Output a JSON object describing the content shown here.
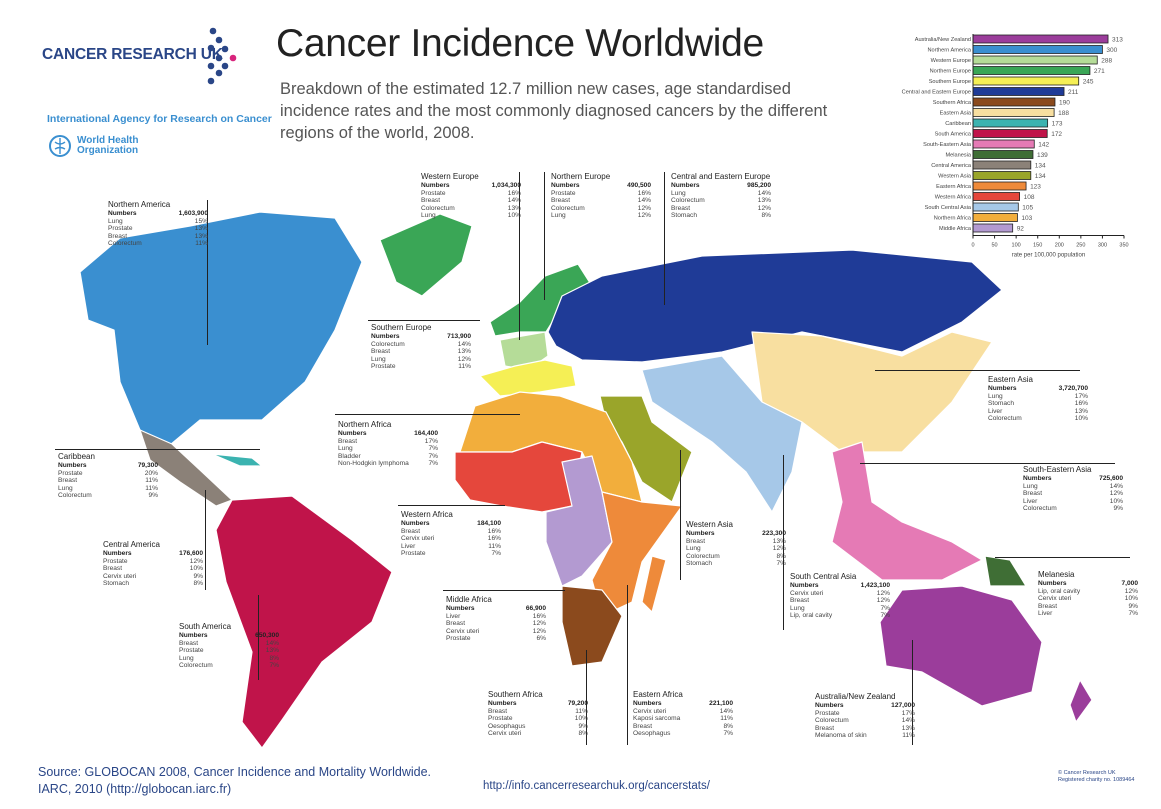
{
  "header": {
    "logo_text": "CANCER RESEARCH UK",
    "iarc": "International Agency for Research on Cancer",
    "who_line1": "World Health",
    "who_line2": "Organization",
    "title": "Cancer Incidence Worldwide",
    "subtitle": "Breakdown of the estimated 12.7 million new cases, age standardised incidence rates and the most commonly diagnosed cancers by the different regions of the world, 2008."
  },
  "numbers_label": "Numbers",
  "regions": [
    {
      "name": "Northern America",
      "numbers": "1,603,900",
      "color": "#3a8fd0",
      "cancers": [
        [
          "Lung",
          "15%"
        ],
        [
          "Prostate",
          "13%"
        ],
        [
          "Breast",
          "13%"
        ],
        [
          "Colorectum",
          "11%"
        ]
      ]
    },
    {
      "name": "Western Europe",
      "numbers": "1,034,300",
      "color": "#b5dc98",
      "cancers": [
        [
          "Prostate",
          "16%"
        ],
        [
          "Breast",
          "14%"
        ],
        [
          "Colorectum",
          "13%"
        ],
        [
          "Lung",
          "10%"
        ]
      ]
    },
    {
      "name": "Northern Europe",
      "numbers": "490,500",
      "color": "#3aa656",
      "cancers": [
        [
          "Prostate",
          "16%"
        ],
        [
          "Breast",
          "14%"
        ],
        [
          "Colorectum",
          "12%"
        ],
        [
          "Lung",
          "12%"
        ]
      ]
    },
    {
      "name": "Central and Eastern Europe",
      "numbers": "985,200",
      "color": "#1f3b97",
      "cancers": [
        [
          "Lung",
          "14%"
        ],
        [
          "Colorectum",
          "13%"
        ],
        [
          "Breast",
          "12%"
        ],
        [
          "Stomach",
          "8%"
        ]
      ]
    },
    {
      "name": "Southern Europe",
      "numbers": "713,900",
      "color": "#f5ef55",
      "cancers": [
        [
          "Colorectum",
          "14%"
        ],
        [
          "Breast",
          "13%"
        ],
        [
          "Lung",
          "12%"
        ],
        [
          "Prostate",
          "11%"
        ]
      ]
    },
    {
      "name": "Eastern Asia",
      "numbers": "3,720,700",
      "color": "#f8dfa0",
      "cancers": [
        [
          "Lung",
          "17%"
        ],
        [
          "Stomach",
          "16%"
        ],
        [
          "Liver",
          "13%"
        ],
        [
          "Colorectum",
          "10%"
        ]
      ]
    },
    {
      "name": "Northern Africa",
      "numbers": "164,400",
      "color": "#f2ae3c",
      "cancers": [
        [
          "Breast",
          "17%"
        ],
        [
          "Lung",
          "7%"
        ],
        [
          "Bladder",
          "7%"
        ],
        [
          "Non-Hodgkin lymphoma",
          "7%"
        ]
      ]
    },
    {
      "name": "Caribbean",
      "numbers": "79,300",
      "color": "#3bb3b0",
      "cancers": [
        [
          "Prostate",
          "20%"
        ],
        [
          "Breast",
          "11%"
        ],
        [
          "Lung",
          "11%"
        ],
        [
          "Colorectum",
          "9%"
        ]
      ]
    },
    {
      "name": "South-Eastern Asia",
      "numbers": "725,600",
      "color": "#e57ab5",
      "cancers": [
        [
          "Lung",
          "14%"
        ],
        [
          "Breast",
          "12%"
        ],
        [
          "Liver",
          "10%"
        ],
        [
          "Colorectum",
          "9%"
        ]
      ]
    },
    {
      "name": "Western Africa",
      "numbers": "184,100",
      "color": "#e5473c",
      "cancers": [
        [
          "Breast",
          "16%"
        ],
        [
          "Cervix uteri",
          "16%"
        ],
        [
          "Liver",
          "11%"
        ],
        [
          "Prostate",
          "7%"
        ]
      ]
    },
    {
      "name": "Western Asia",
      "numbers": "223,300",
      "color": "#9aa52a",
      "cancers": [
        [
          "Breast",
          "13%"
        ],
        [
          "Lung",
          "12%"
        ],
        [
          "Colorectum",
          "8%"
        ],
        [
          "Stomach",
          "7%"
        ]
      ]
    },
    {
      "name": "Central America",
      "numbers": "176,600",
      "color": "#8b8178",
      "cancers": [
        [
          "Prostate",
          "12%"
        ],
        [
          "Breast",
          "10%"
        ],
        [
          "Cervix uteri",
          "9%"
        ],
        [
          "Stomach",
          "8%"
        ]
      ]
    },
    {
      "name": "Melanesia",
      "numbers": "7,000",
      "color": "#3f6e35",
      "cancers": [
        [
          "Lip, oral cavity",
          "12%"
        ],
        [
          "Cervix uteri",
          "10%"
        ],
        [
          "Breast",
          "9%"
        ],
        [
          "Liver",
          "7%"
        ]
      ]
    },
    {
      "name": "South Central Asia",
      "numbers": "1,423,100",
      "color": "#a6c8e8",
      "cancers": [
        [
          "Cervix uteri",
          "12%"
        ],
        [
          "Breast",
          "12%"
        ],
        [
          "Lung",
          "7%"
        ],
        [
          "Lip, oral cavity",
          "7%"
        ]
      ]
    },
    {
      "name": "Middle Africa",
      "numbers": "66,900",
      "color": "#b39ad1",
      "cancers": [
        [
          "Liver",
          "16%"
        ],
        [
          "Breast",
          "12%"
        ],
        [
          "Cervix uteri",
          "12%"
        ],
        [
          "Prostate",
          "6%"
        ]
      ]
    },
    {
      "name": "South America",
      "numbers": "650,300",
      "color": "#c0144a",
      "cancers": [
        [
          "Breast",
          "14%"
        ],
        [
          "Prostate",
          "13%"
        ],
        [
          "Lung",
          "8%"
        ],
        [
          "Colorectum",
          "7%"
        ]
      ]
    },
    {
      "name": "Southern Africa",
      "numbers": "79,200",
      "color": "#8b4a1d",
      "cancers": [
        [
          "Breast",
          "11%"
        ],
        [
          "Prostate",
          "10%"
        ],
        [
          "Oesophagus",
          "9%"
        ],
        [
          "Cervix uteri",
          "8%"
        ]
      ]
    },
    {
      "name": "Eastern Africa",
      "numbers": "221,100",
      "color": "#ee8a3a",
      "cancers": [
        [
          "Cervix uteri",
          "14%"
        ],
        [
          "Kaposi sarcoma",
          "11%"
        ],
        [
          "Breast",
          "8%"
        ],
        [
          "Oesophagus",
          "7%"
        ]
      ]
    },
    {
      "name": "Australia/New Zealand",
      "numbers": "127,000",
      "color": "#9b3d9b",
      "cancers": [
        [
          "Prostate",
          "17%"
        ],
        [
          "Colorectum",
          "14%"
        ],
        [
          "Breast",
          "13%"
        ],
        [
          "Melanoma of skin",
          "11%"
        ]
      ]
    }
  ],
  "chart_data": {
    "type": "bar",
    "orientation": "horizontal",
    "categories": [
      "Australia/New Zealand",
      "Northern America",
      "Western Europe",
      "Northern Europe",
      "Southern Europe",
      "Central and Eastern Europe",
      "Southern Africa",
      "Eastern Asia",
      "Caribbean",
      "South America",
      "South-Eastern Asia",
      "Melanesia",
      "Central America",
      "Western Asia",
      "Eastern Africa",
      "Western Africa",
      "South Central Asia",
      "Northern Africa",
      "Middle Africa"
    ],
    "values": [
      313,
      300,
      288,
      271,
      245,
      211,
      190,
      188,
      173,
      172,
      142,
      139,
      134,
      134,
      123,
      108,
      105,
      103,
      92
    ],
    "colors": [
      "#9b3d9b",
      "#3a8fd0",
      "#b5dc98",
      "#3aa656",
      "#f5ef55",
      "#1f3b97",
      "#8b4a1d",
      "#f8dfa0",
      "#3bb3b0",
      "#c0144a",
      "#e57ab5",
      "#3f6e35",
      "#8b8178",
      "#9aa52a",
      "#ee8a3a",
      "#e5473c",
      "#a6c8e8",
      "#f2ae3c",
      "#b39ad1"
    ],
    "xlabel": "rate per 100,000 population",
    "xlim": [
      0,
      350
    ],
    "xticks": [
      0,
      50,
      100,
      150,
      200,
      250,
      300,
      350
    ],
    "grid": false,
    "data_labels": true
  },
  "footer": {
    "source_line1": "Source: GLOBOCAN 2008, Cancer Incidence and Mortality Worldwide.",
    "source_line2": "IARC, 2010 (http://globocan.iarc.fr)",
    "url": "http://info.cancerresearchuk.org/cancerstats/",
    "copyright": "© Cancer Research UK",
    "registered": "Registered charity no. 1089464"
  }
}
